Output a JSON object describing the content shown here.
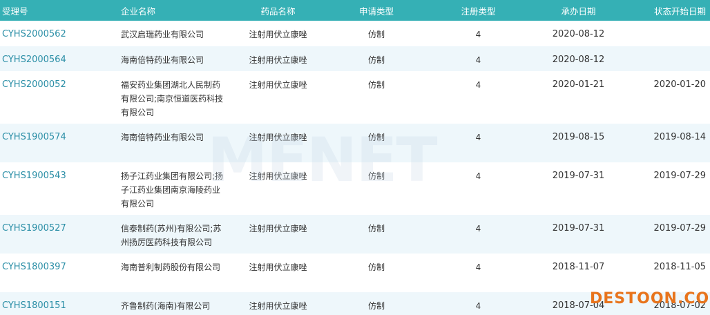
{
  "table": {
    "header": [
      "受理号",
      "企业名称",
      "药品名称",
      "申请类型",
      "注册类型",
      "承办日期",
      "状态开始日期"
    ],
    "rows": [
      [
        "CYHS2000562",
        "武汉启瑞药业有限公司",
        "注射用伏立康唑",
        "仿制",
        "4",
        "2020-08-12",
        null
      ],
      [
        "CYHS2000564",
        "海南倍特药业有限公司",
        "注射用伏立康唑",
        "仿制",
        "4",
        "2020-08-12",
        null
      ],
      [
        "CYHS2000052",
        "福安药业集团湖北人民制药有限公司;南京恒道医药科技有限公司",
        "注射用伏立康唑",
        "仿制",
        "4",
        "2020-01-21",
        "2020-01-20"
      ],
      [
        "CYHS1900574",
        "海南倍特药业有限公司",
        "注射用伏立康唑",
        "仿制",
        "4",
        "2019-08-15",
        "2019-08-14"
      ],
      [
        "CYHS1900543",
        "扬子江药业集团有限公司;扬子江药业集团南京海陵药业有限公司",
        "注射用伏立康唑",
        "仿制",
        "4",
        "2019-07-31",
        "2019-07-29"
      ],
      [
        "CYHS1900527",
        "信泰制药(苏州)有限公司;苏州扬厉医药科技有限公司",
        "注射用伏立康唑",
        "仿制",
        "4",
        "2019-07-31",
        "2019-07-29"
      ],
      [
        "CYHS1800397",
        "海南普利制药股份有限公司",
        "注射用伏立康唑",
        "仿制",
        "4",
        "2018-11-07",
        "2018-11-05"
      ],
      [
        "CYHS1800151",
        "齐鲁制药(海南)有限公司",
        "注射用伏立康唑",
        "仿制",
        "4",
        "2018-07-04",
        "2018-07-02"
      ]
    ]
  },
  "watermarks": [
    "MENET",
    "DESTOON.COM"
  ]
}
